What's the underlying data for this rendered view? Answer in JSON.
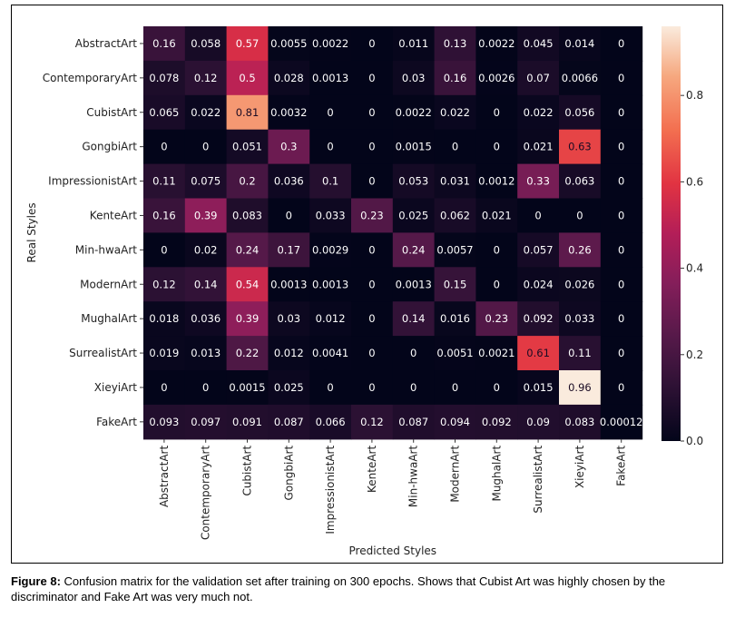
{
  "caption": {
    "label": "Figure 8:",
    "text": " Confusion matrix for the validation set after training on 300 epochs. Shows that Cubist Art was highly chosen by the discriminator and Fake Art was very much not."
  },
  "chart_data": {
    "type": "heatmap",
    "xlabel": "Predicted Styles",
    "ylabel": "Real Styles",
    "x_categories": [
      "AbstractArt",
      "ContemporaryArt",
      "CubistArt",
      "GongbiArt",
      "ImpressionistArt",
      "KenteArt",
      "Min-hwaArt",
      "ModernArt",
      "MughalArt",
      "SurrealistArt",
      "XieyiArt",
      "FakeArt"
    ],
    "y_categories": [
      "AbstractArt",
      "ContemporaryArt",
      "CubistArt",
      "GongbiArt",
      "ImpressionistArt",
      "KenteArt",
      "Min-hwaArt",
      "ModernArt",
      "MughalArt",
      "SurrealistArt",
      "XieyiArt",
      "FakeArt"
    ],
    "cells": [
      [
        "0.16",
        "0.058",
        "0.57",
        "0.0055",
        "0.0022",
        "0",
        "0.011",
        "0.13",
        "0.0022",
        "0.045",
        "0.014",
        "0"
      ],
      [
        "0.078",
        "0.12",
        "0.5",
        "0.028",
        "0.0013",
        "0",
        "0.03",
        "0.16",
        "0.0026",
        "0.07",
        "0.0066",
        "0"
      ],
      [
        "0.065",
        "0.022",
        "0.81",
        "0.0032",
        "0",
        "0",
        "0.0022",
        "0.022",
        "0",
        "0.022",
        "0.056",
        "0"
      ],
      [
        "0",
        "0",
        "0.051",
        "0.3",
        "0",
        "0",
        "0.0015",
        "0",
        "0",
        "0.021",
        "0.63",
        "0"
      ],
      [
        "0.11",
        "0.075",
        "0.2",
        "0.036",
        "0.1",
        "0",
        "0.053",
        "0.031",
        "0.0012",
        "0.33",
        "0.063",
        "0"
      ],
      [
        "0.16",
        "0.39",
        "0.083",
        "0",
        "0.033",
        "0.23",
        "0.025",
        "0.062",
        "0.021",
        "0",
        "0",
        "0"
      ],
      [
        "0",
        "0.02",
        "0.24",
        "0.17",
        "0.0029",
        "0",
        "0.24",
        "0.0057",
        "0",
        "0.057",
        "0.26",
        "0"
      ],
      [
        "0.12",
        "0.14",
        "0.54",
        "0.0013",
        "0.0013",
        "0",
        "0.0013",
        "0.15",
        "0",
        "0.024",
        "0.026",
        "0"
      ],
      [
        "0.018",
        "0.036",
        "0.39",
        "0.03",
        "0.012",
        "0",
        "0.14",
        "0.016",
        "0.23",
        "0.092",
        "0.033",
        "0"
      ],
      [
        "0.019",
        "0.013",
        "0.22",
        "0.012",
        "0.0041",
        "0",
        "0",
        "0.0051",
        "0.0021",
        "0.61",
        "0.11",
        "0"
      ],
      [
        "0",
        "0",
        "0.0015",
        "0.025",
        "0",
        "0",
        "0",
        "0",
        "0",
        "0.015",
        "0.96",
        "0"
      ],
      [
        "0.093",
        "0.097",
        "0.091",
        "0.087",
        "0.066",
        "0.12",
        "0.087",
        "0.094",
        "0.092",
        "0.09",
        "0.083",
        "0.00012"
      ]
    ],
    "colorbar": {
      "range": [
        0,
        0.96
      ],
      "ticks": [
        "0.0",
        "0.2",
        "0.4",
        "0.6",
        "0.8"
      ],
      "colormap": "rocket"
    }
  }
}
